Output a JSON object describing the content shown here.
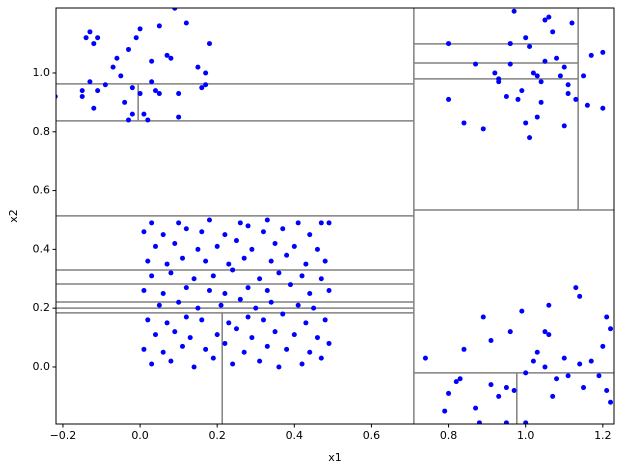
{
  "chart_data": {
    "type": "scatter",
    "xlabel": "x1",
    "ylabel": "x2",
    "xlim": [
      -0.218,
      1.229
    ],
    "ylim": [
      -0.194,
      1.221
    ],
    "xticks": [
      {
        "value": -0.2,
        "label": "−0.2"
      },
      {
        "value": 0,
        "label": "0.0"
      },
      0.2,
      0.4,
      0.6,
      0.8,
      {
        "value": 1,
        "label": "1.0"
      },
      1.2
    ],
    "yticks": [
      {
        "value": 0,
        "label": "0.0"
      },
      0.2,
      0.4,
      0.6,
      0.8,
      {
        "value": 1,
        "label": "1.0"
      }
    ],
    "line_color": "#808080",
    "segments": [
      {
        "x": [
          0.71,
          0.71
        ],
        "y": [
          -0.194,
          1.221
        ]
      },
      {
        "x": [
          -0.218,
          0.71
        ],
        "y": [
          0.963,
          0.963
        ]
      },
      {
        "x": [
          -0.218,
          0.71
        ],
        "y": [
          0.837,
          0.837
        ]
      },
      {
        "x": [
          -0.005,
          -0.005
        ],
        "y": [
          0.837,
          0.963
        ]
      },
      {
        "x": [
          -0.218,
          0.71
        ],
        "y": [
          0.514,
          0.514
        ]
      },
      {
        "x": [
          -0.218,
          0.71
        ],
        "y": [
          0.33,
          0.33
        ]
      },
      {
        "x": [
          -0.218,
          0.71
        ],
        "y": [
          0.282,
          0.282
        ]
      },
      {
        "x": [
          -0.218,
          0.71
        ],
        "y": [
          0.221,
          0.221
        ]
      },
      {
        "x": [
          -0.218,
          0.71
        ],
        "y": [
          0.2,
          0.2
        ]
      },
      {
        "x": [
          -0.218,
          0.71
        ],
        "y": [
          0.184,
          0.184
        ]
      },
      {
        "x": [
          0.213,
          0.213
        ],
        "y": [
          -0.194,
          0.184
        ]
      },
      {
        "x": [
          0.71,
          1.229
        ],
        "y": [
          0.534,
          0.534
        ]
      },
      {
        "x": [
          1.136,
          1.136
        ],
        "y": [
          0.534,
          1.221
        ]
      },
      {
        "x": [
          0.71,
          1.136
        ],
        "y": [
          1.099,
          1.099
        ]
      },
      {
        "x": [
          0.71,
          1.136
        ],
        "y": [
          1.034,
          1.034
        ]
      },
      {
        "x": [
          0.71,
          1.136
        ],
        "y": [
          0.98,
          0.98
        ]
      },
      {
        "x": [
          0.71,
          1.229
        ],
        "y": [
          -0.02,
          -0.02
        ]
      },
      {
        "x": [
          0.977,
          0.977
        ],
        "y": [
          -0.194,
          -0.02
        ]
      }
    ],
    "series": [
      {
        "color": "#0000ff",
        "x": [
          -0.22,
          -0.15,
          -0.15,
          -0.14,
          -0.13,
          -0.12,
          -0.11,
          -0.13,
          -0.12,
          -0.11,
          -0.09,
          -0.07,
          -0.06,
          -0.05,
          -0.03,
          -0.03,
          -0.02,
          -0.01,
          0.0,
          0.0,
          -0.04,
          -0.02,
          0.01,
          0.03,
          0.03,
          0.04,
          0.05,
          0.05,
          0.07,
          0.08,
          0.09,
          0.1,
          0.12,
          0.1,
          0.15,
          0.16,
          0.17,
          0.17,
          0.18,
          0.02
        ],
        "y": [
          0.92,
          0.94,
          0.92,
          1.12,
          1.14,
          1.1,
          1.12,
          0.97,
          0.88,
          0.94,
          0.96,
          1.02,
          1.05,
          0.99,
          1.08,
          0.84,
          0.86,
          1.12,
          0.93,
          1.15,
          0.9,
          0.95,
          0.86,
          0.97,
          1.04,
          0.94,
          0.93,
          1.16,
          1.06,
          1.05,
          1.22,
          0.85,
          1.17,
          0.93,
          1.02,
          0.95,
          0.96,
          1.0,
          1.1,
          0.84
        ]
      },
      {
        "color": "#0000ff",
        "x": [
          0.8,
          0.8,
          0.84,
          0.87,
          0.89,
          0.92,
          0.93,
          0.95,
          0.96,
          0.96,
          0.97,
          0.98,
          0.99,
          1.0,
          1.01,
          1.02,
          1.03,
          1.03,
          1.04,
          1.05,
          1.04,
          1.06,
          1.07,
          1.08,
          1.09,
          1.1,
          1.1,
          1.11,
          1.13,
          1.12,
          1.15,
          1.16,
          1.17,
          1.2,
          1.2,
          1.01,
          1.0,
          0.93,
          1.05,
          1.11
        ],
        "y": [
          1.1,
          0.91,
          0.83,
          1.03,
          0.81,
          1.0,
          0.98,
          0.92,
          1.03,
          1.1,
          1.21,
          0.91,
          0.94,
          1.12,
          1.09,
          1.0,
          0.85,
          0.99,
          0.97,
          1.04,
          0.9,
          1.19,
          1.14,
          1.05,
          0.99,
          1.02,
          0.82,
          0.96,
          0.91,
          1.17,
          0.99,
          0.89,
          1.06,
          1.07,
          0.88,
          0.78,
          0.83,
          0.97,
          1.18,
          0.93
        ]
      },
      {
        "color": "#0000ff",
        "x": [
          0.74,
          0.79,
          0.8,
          0.82,
          0.83,
          0.84,
          0.87,
          0.88,
          0.89,
          0.91,
          0.91,
          0.93,
          0.95,
          0.95,
          0.96,
          0.97,
          0.99,
          1.0,
          1.0,
          1.02,
          1.03,
          1.05,
          1.05,
          1.06,
          1.06,
          1.07,
          1.08,
          1.1,
          1.11,
          1.13,
          1.14,
          1.14,
          1.15,
          1.17,
          1.19,
          1.2,
          1.21,
          1.22,
          1.22,
          1.21
        ],
        "y": [
          0.03,
          -0.15,
          -0.09,
          -0.05,
          -0.04,
          0.06,
          -0.14,
          -0.19,
          0.17,
          0.09,
          -0.06,
          -0.1,
          -0.07,
          -0.19,
          0.12,
          -0.08,
          0.19,
          -0.02,
          -0.19,
          0.02,
          0.05,
          0.0,
          0.12,
          0.21,
          0.11,
          -0.1,
          -0.04,
          0.03,
          -0.03,
          0.27,
          0.24,
          0.01,
          -0.07,
          0.02,
          -0.03,
          0.07,
          0.17,
          0.13,
          -0.12,
          -0.08
        ]
      },
      {
        "color": "#0000ff",
        "x": [
          0.03,
          0.08,
          0.14,
          0.19,
          0.24,
          0.31,
          0.36,
          0.42,
          0.47,
          0.01,
          0.06,
          0.11,
          0.17,
          0.22,
          0.27,
          0.33,
          0.38,
          0.44,
          0.49,
          0.04,
          0.09,
          0.13,
          0.2,
          0.25,
          0.29,
          0.35,
          0.4,
          0.46,
          0.02,
          0.07,
          0.12,
          0.16,
          0.23,
          0.28,
          0.32,
          0.37,
          0.43,
          0.48,
          0.05,
          0.1,
          0.15,
          0.21,
          0.26,
          0.3,
          0.34,
          0.41,
          0.45,
          0.01,
          0.06,
          0.12,
          0.18,
          0.22,
          0.28,
          0.33,
          0.39,
          0.44,
          0.49,
          0.03,
          0.08,
          0.14,
          0.19,
          0.24,
          0.31,
          0.36,
          0.42,
          0.47,
          0.02,
          0.07,
          0.11,
          0.17,
          0.23,
          0.27,
          0.34,
          0.38,
          0.43,
          0.48,
          0.04,
          0.09,
          0.15,
          0.2,
          0.25,
          0.29,
          0.35,
          0.4,
          0.46,
          0.01,
          0.06,
          0.12,
          0.16,
          0.22,
          0.28,
          0.32,
          0.37,
          0.44,
          0.49,
          0.03,
          0.1,
          0.18,
          0.26,
          0.33,
          0.41,
          0.47
        ],
        "y": [
          0.01,
          0.02,
          0.0,
          0.03,
          0.01,
          0.02,
          0.0,
          0.01,
          0.03,
          0.06,
          0.05,
          0.07,
          0.06,
          0.08,
          0.05,
          0.07,
          0.06,
          0.05,
          0.08,
          0.11,
          0.12,
          0.1,
          0.11,
          0.13,
          0.1,
          0.12,
          0.11,
          0.1,
          0.16,
          0.15,
          0.17,
          0.16,
          0.15,
          0.17,
          0.16,
          0.18,
          0.15,
          0.16,
          0.21,
          0.22,
          0.2,
          0.21,
          0.23,
          0.2,
          0.22,
          0.21,
          0.2,
          0.26,
          0.25,
          0.27,
          0.26,
          0.25,
          0.27,
          0.26,
          0.28,
          0.25,
          0.26,
          0.31,
          0.32,
          0.3,
          0.31,
          0.33,
          0.3,
          0.32,
          0.31,
          0.3,
          0.36,
          0.35,
          0.37,
          0.36,
          0.35,
          0.37,
          0.36,
          0.38,
          0.35,
          0.36,
          0.41,
          0.42,
          0.4,
          0.41,
          0.43,
          0.4,
          0.42,
          0.41,
          0.4,
          0.46,
          0.45,
          0.47,
          0.46,
          0.45,
          0.48,
          0.46,
          0.47,
          0.45,
          0.49,
          0.49,
          0.49,
          0.5,
          0.49,
          0.5,
          0.49,
          0.49
        ]
      }
    ]
  }
}
